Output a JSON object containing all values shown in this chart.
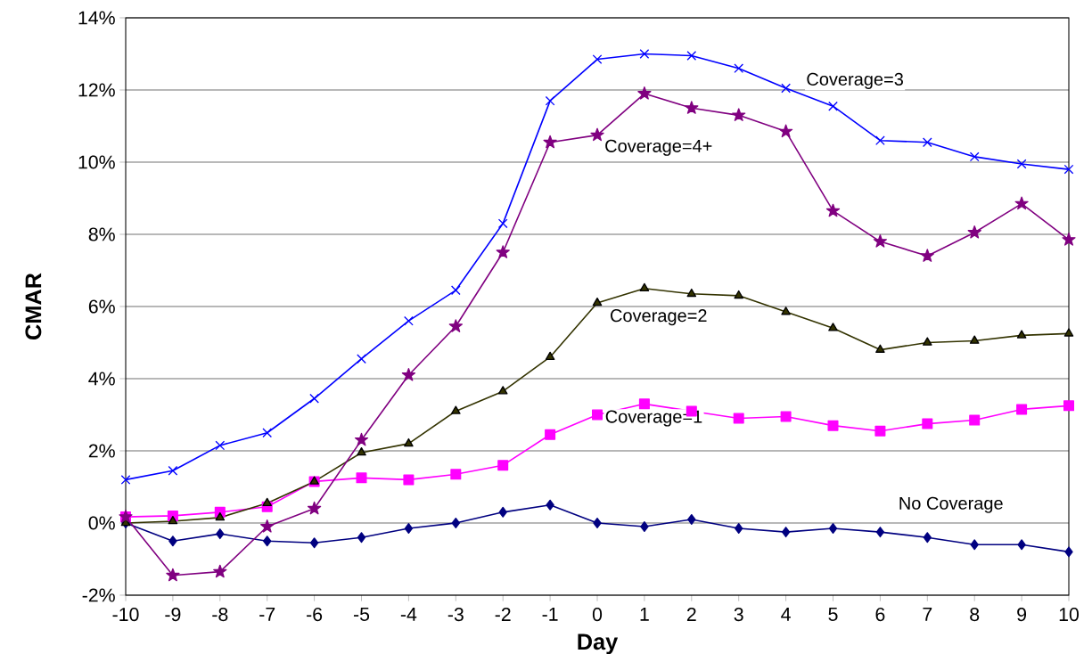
{
  "chart_data": {
    "type": "line",
    "xlabel": "Day",
    "ylabel": "CMAR",
    "x": [
      -10,
      -9,
      -8,
      -7,
      -6,
      -5,
      -4,
      -3,
      -2,
      -1,
      0,
      1,
      2,
      3,
      4,
      5,
      6,
      7,
      8,
      9,
      10
    ],
    "xlim": [
      -10,
      10
    ],
    "xticks": [
      -10,
      -9,
      -8,
      -7,
      -6,
      -5,
      -4,
      -3,
      -2,
      -1,
      0,
      1,
      2,
      3,
      4,
      5,
      6,
      7,
      8,
      9,
      10
    ],
    "ylim": [
      -2,
      14
    ],
    "yticks": [
      {
        "value": -2,
        "label": "-2%"
      },
      {
        "value": 0,
        "label": "0%"
      },
      {
        "value": 2,
        "label": "2%"
      },
      {
        "value": 4,
        "label": "4%"
      },
      {
        "value": 6,
        "label": "6%"
      },
      {
        "value": 8,
        "label": "8%"
      },
      {
        "value": 10,
        "label": "10%"
      },
      {
        "value": 12,
        "label": "12%"
      },
      {
        "value": 14,
        "label": "14%"
      }
    ],
    "grid": "y",
    "legend": false,
    "line_style": "solid",
    "series": [
      {
        "name": "No Coverage",
        "color": "#000080",
        "marker": "diamond",
        "values": [
          0,
          -0.5,
          -0.3,
          -0.5,
          -0.55,
          -0.4,
          -0.15,
          0,
          0.3,
          0.5,
          0,
          -0.1,
          0.1,
          -0.15,
          -0.25,
          -0.15,
          -0.25,
          -0.4,
          -0.6,
          -0.6,
          -0.8
        ]
      },
      {
        "name": "Coverage=1",
        "color": "#ff00ff",
        "marker": "square",
        "values": [
          0.17,
          0.2,
          0.3,
          0.45,
          1.15,
          1.25,
          1.2,
          1.35,
          1.6,
          2.45,
          3.0,
          3.3,
          3.1,
          2.9,
          2.95,
          2.7,
          2.55,
          2.75,
          2.85,
          3.15,
          3.25
        ]
      },
      {
        "name": "Coverage=2",
        "color": "#333300",
        "marker": "triangle",
        "values": [
          0,
          0.05,
          0.15,
          0.55,
          1.15,
          1.95,
          2.2,
          3.1,
          3.65,
          4.6,
          6.1,
          6.5,
          6.35,
          6.3,
          5.85,
          5.4,
          4.8,
          5.0,
          5.05,
          5.2,
          5.25
        ]
      },
      {
        "name": "Coverage=3",
        "color": "#0000ff",
        "marker": "cross",
        "values": [
          1.2,
          1.45,
          2.15,
          2.5,
          3.45,
          4.55,
          5.6,
          6.45,
          8.3,
          11.7,
          12.85,
          13.0,
          12.95,
          12.6,
          12.05,
          11.55,
          10.6,
          10.55,
          10.15,
          9.95,
          9.8
        ]
      },
      {
        "name": "Coverage=4+",
        "color": "#800080",
        "marker": "star",
        "values": [
          0.17,
          -1.45,
          -1.35,
          -0.1,
          0.4,
          2.3,
          4.1,
          5.45,
          7.5,
          10.55,
          10.75,
          11.9,
          11.5,
          11.3,
          10.85,
          8.65,
          7.8,
          7.4,
          8.05,
          8.85,
          7.85
        ]
      }
    ]
  }
}
